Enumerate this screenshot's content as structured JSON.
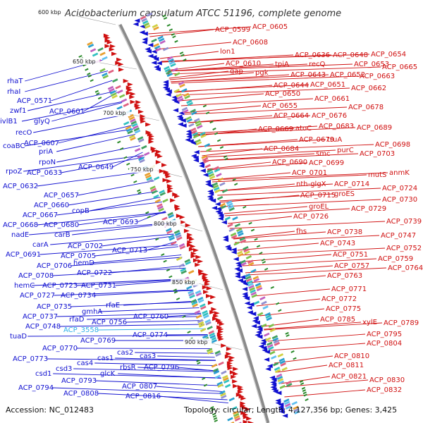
{
  "title": "Acidobacterium capsulatum ATCC 51196, complete genome",
  "footer": {
    "accession": "Accession: NC_012483",
    "summary": "Topology: circular; Length: 4,127,356 bp; Genes: 3,425"
  },
  "colors": {
    "minus_strand": "#1010d0",
    "plus_strand": "#d01010",
    "highlight": "#30b0e8",
    "backbone": "#888888"
  },
  "scale_labels": [
    "600 kbp",
    "650 kbp",
    "700 kbp",
    "750 kbp",
    "800 kbp",
    "850 kbp",
    "900 kbp"
  ],
  "left_labels": [
    "rhaT",
    "rhaI",
    "ACP_0571",
    "zwf1",
    "ivlB1",
    "ACP_0601",
    "glyQ",
    "recO",
    "ACP_0607",
    "priA",
    "coaBC",
    "rpoN",
    "rpoZ",
    "ACP_0633",
    "ACP_0632",
    "ACP_0649",
    "ACP_0657",
    "ACP_0660",
    "copB",
    "ACP_0667",
    "ACP_0668",
    "ACP_0680",
    "nadE",
    "carB",
    "ACP_0693",
    "carA",
    "ACP_0702",
    "ACP_0691",
    "ACP_0705",
    "ACP_0713",
    "ACP_0706",
    "hemD",
    "ACP_0708",
    "ACP_0722",
    "hemC",
    "ACP_0723",
    "ACP_0731",
    "ACP_0727",
    "ACP_0734",
    "ACP_0735",
    "rfaE",
    "gmhA",
    "ACP_0737",
    "rfaD",
    "ACP_0760",
    "ACP_0748",
    "ACP_0756",
    "ACP_3558",
    "tuaD",
    "ACP_0774",
    "ACP_0769",
    "ACP_0770",
    "cas2",
    "cas3",
    "ACP_0773",
    "cas1",
    "cas4",
    "csd3",
    "rbsR",
    "ACP_0796",
    "csd1",
    "glcK",
    "ACP_0793",
    "ACP_0807",
    "ACP_0794",
    "ACP_0808",
    "ACP_0816"
  ],
  "right_labels": [
    "ACP_0599",
    "ACP_0605",
    "ACP_0608",
    "lon1",
    "ACP_0610",
    "gap",
    "ACP_0636",
    "ACP_0648",
    "ACP_0654",
    "tpiA",
    "recQ",
    "ACP_0653",
    "ACP_0665",
    "pgk",
    "ACP_0643",
    "ACP_0652",
    "ACP_0663",
    "ACP_0644",
    "ACP_0651",
    "ACP_0662",
    "ACP_0650",
    "ACP_0661",
    "ACP_0655",
    "ACP_0678",
    "ACP_0664",
    "ACP_0676",
    "ACP_0669",
    "atoC",
    "ACP_0683",
    "ACP_0689",
    "ACP_0679",
    "truA",
    "ACP_0684",
    "ACP_0698",
    "smc",
    "purC",
    "ACP_0703",
    "ACP_0690",
    "ACP_0699",
    "ACP_0701",
    "mutS",
    "anmK",
    "nth-glgX",
    "ACP_0714",
    "ACP_0724",
    "ACP_0715",
    "groES",
    "ACP_0730",
    "groEL",
    "ACP_0729",
    "ACP_0726",
    "ACP_0739",
    "fhs",
    "ACP_0738",
    "ACP_0747",
    "ACP_0743",
    "ACP_0752",
    "ACP_0751",
    "ACP_0759",
    "ACP_0757",
    "ACP_0764",
    "ACP_0763",
    "ACP_0771",
    "ACP_0772",
    "ACP_0775",
    "xylE",
    "ACP_0785",
    "ACP_0789",
    "ACP_0795",
    "ACP_0804",
    "ACP_0810",
    "ACP_0811",
    "ACP_0821",
    "ACP_0830",
    "ACP_0832"
  ]
}
